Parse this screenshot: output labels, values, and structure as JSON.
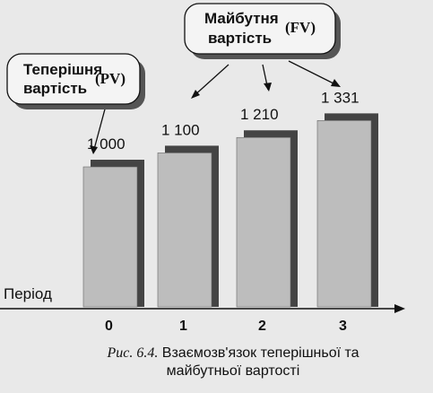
{
  "chart_data": {
    "type": "bar",
    "categories": [
      "0",
      "1",
      "2",
      "3"
    ],
    "values": [
      1000,
      1100,
      1210,
      1331
    ],
    "value_labels": [
      "1 000",
      "1 100",
      "1 210",
      "1 331"
    ],
    "xlabel": "Період",
    "ylabel": "",
    "grid": false,
    "legend": "none"
  },
  "annotations": {
    "present_value": {
      "text": "Теперішня вартість",
      "line1": "Теперішня",
      "line2": "вартість",
      "abbr": "(PV)"
    },
    "future_value": {
      "text": "Майбутня вартість",
      "line1": "Майбутня",
      "line2": "вартість",
      "abbr": "(FV)"
    }
  },
  "caption": {
    "figure_label": "Рис. 6.4.",
    "text_line1": "Взаємозв'язок теперішньої та",
    "text_line2": "майбутньої вартості"
  },
  "colors": {
    "bar_front": "#bdbdbd",
    "bar_shadow": "#444444",
    "background": "#e9e9e9"
  }
}
